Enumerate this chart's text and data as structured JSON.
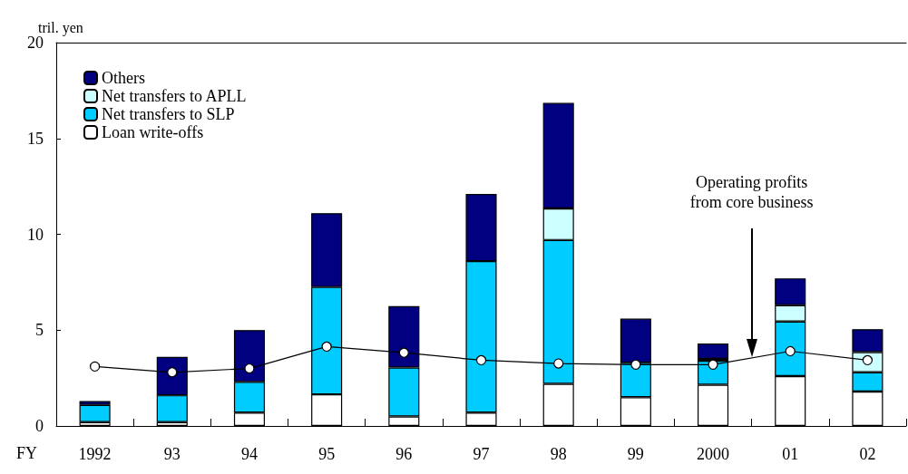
{
  "chart_data": {
    "type": "bar",
    "stacked": true,
    "xlabel": "FY",
    "ylabel": "tril. yen",
    "categories": [
      "1992",
      "93",
      "94",
      "95",
      "96",
      "97",
      "98",
      "99",
      "2000",
      "01",
      "02"
    ],
    "series": [
      {
        "name": "Loan write-offs",
        "color": "#ffffff",
        "values": [
          0.2,
          0.2,
          0.7,
          1.65,
          0.5,
          0.7,
          2.2,
          1.5,
          2.15,
          2.6,
          1.8
        ]
      },
      {
        "name": "Net transfers to SLP",
        "color": "#00ccff",
        "values": [
          0.9,
          1.4,
          1.6,
          5.6,
          2.55,
          7.9,
          7.5,
          1.8,
          1.25,
          2.85,
          1.0
        ]
      },
      {
        "name": "Net transfers to APLL",
        "color": "#ccffff",
        "values": [
          0,
          0,
          0,
          0,
          0,
          0,
          1.65,
          0,
          0.1,
          0.85,
          1.05
        ]
      },
      {
        "name": "Others",
        "color": "#000080",
        "values": [
          0.2,
          2.0,
          2.7,
          3.85,
          3.2,
          3.5,
          5.5,
          2.3,
          0.8,
          1.4,
          1.2
        ]
      },
      {
        "type": "line",
        "color": "#000000",
        "marker": "circle",
        "line_style": "solid",
        "values": [
          3.1,
          2.8,
          3.0,
          4.14,
          3.82,
          3.43,
          3.26,
          3.2,
          3.2,
          3.9,
          3.43
        ]
      }
    ],
    "annotations": [
      "Operating profits from core business"
    ],
    "ylim": [
      0,
      20
    ],
    "yticks": [
      0,
      5,
      10,
      15,
      20
    ],
    "grid": false,
    "legend": "top left"
  }
}
